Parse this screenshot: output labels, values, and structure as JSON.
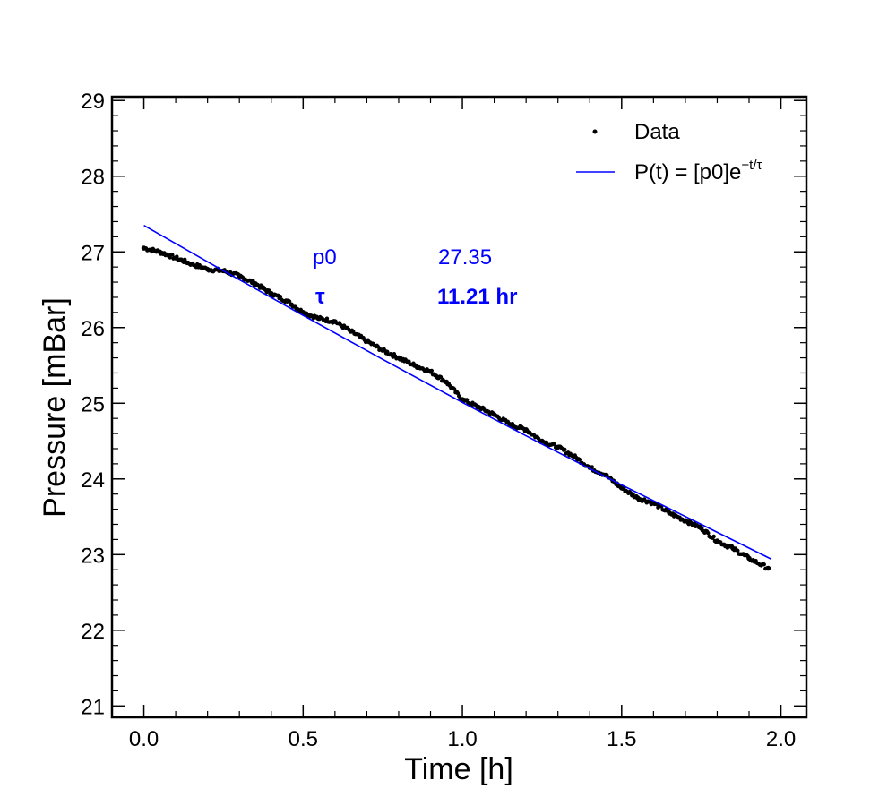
{
  "chart_data": {
    "type": "scatter",
    "xlabel": "Time [h]",
    "ylabel": "Pressure [mBar]",
    "xlim": [
      -0.1,
      2.08
    ],
    "ylim": [
      20.85,
      29.05
    ],
    "xticks": [
      "0.0",
      "0.5",
      "1.0",
      "1.5",
      "2.0"
    ],
    "yticks": [
      "21",
      "22",
      "23",
      "24",
      "25",
      "26",
      "27",
      "28",
      "29"
    ],
    "grid": false,
    "legend_position": "top-right",
    "colors": {
      "data": "#000000",
      "fit": "#0000ff",
      "params": "#0000ff"
    },
    "series": [
      {
        "name": "Data",
        "kind": "scatter",
        "x": [
          0.0,
          0.05,
          0.1,
          0.15,
          0.2,
          0.25,
          0.3,
          0.35,
          0.4,
          0.45,
          0.5,
          0.55,
          0.6,
          0.65,
          0.7,
          0.75,
          0.8,
          0.85,
          0.9,
          0.95,
          1.0,
          1.05,
          1.1,
          1.15,
          1.2,
          1.25,
          1.3,
          1.35,
          1.4,
          1.45,
          1.5,
          1.55,
          1.6,
          1.65,
          1.7,
          1.75,
          1.8,
          1.85,
          1.9,
          1.96
        ],
        "y": [
          27.05,
          27.0,
          26.92,
          26.84,
          26.77,
          26.75,
          26.68,
          26.58,
          26.45,
          26.35,
          26.2,
          26.12,
          26.08,
          25.95,
          25.82,
          25.7,
          25.6,
          25.5,
          25.42,
          25.28,
          25.05,
          24.95,
          24.85,
          24.72,
          24.65,
          24.5,
          24.42,
          24.3,
          24.15,
          24.05,
          23.88,
          23.75,
          23.68,
          23.55,
          23.45,
          23.35,
          23.18,
          23.08,
          22.95,
          22.82
        ]
      },
      {
        "name": "P(t) = [p0]e",
        "name_superscript": "−t/τ",
        "kind": "line",
        "x": [
          0.0,
          0.25,
          0.5,
          0.75,
          1.0,
          1.25,
          1.5,
          1.75,
          1.97
        ],
        "y": [
          27.35,
          26.75,
          26.16,
          25.58,
          25.01,
          24.46,
          23.92,
          23.4,
          22.94
        ]
      }
    ],
    "annotations": [
      {
        "label": "p0",
        "value": "27.35",
        "bold": false
      },
      {
        "label": "τ",
        "value": "11.21 hr",
        "bold": true
      }
    ]
  }
}
